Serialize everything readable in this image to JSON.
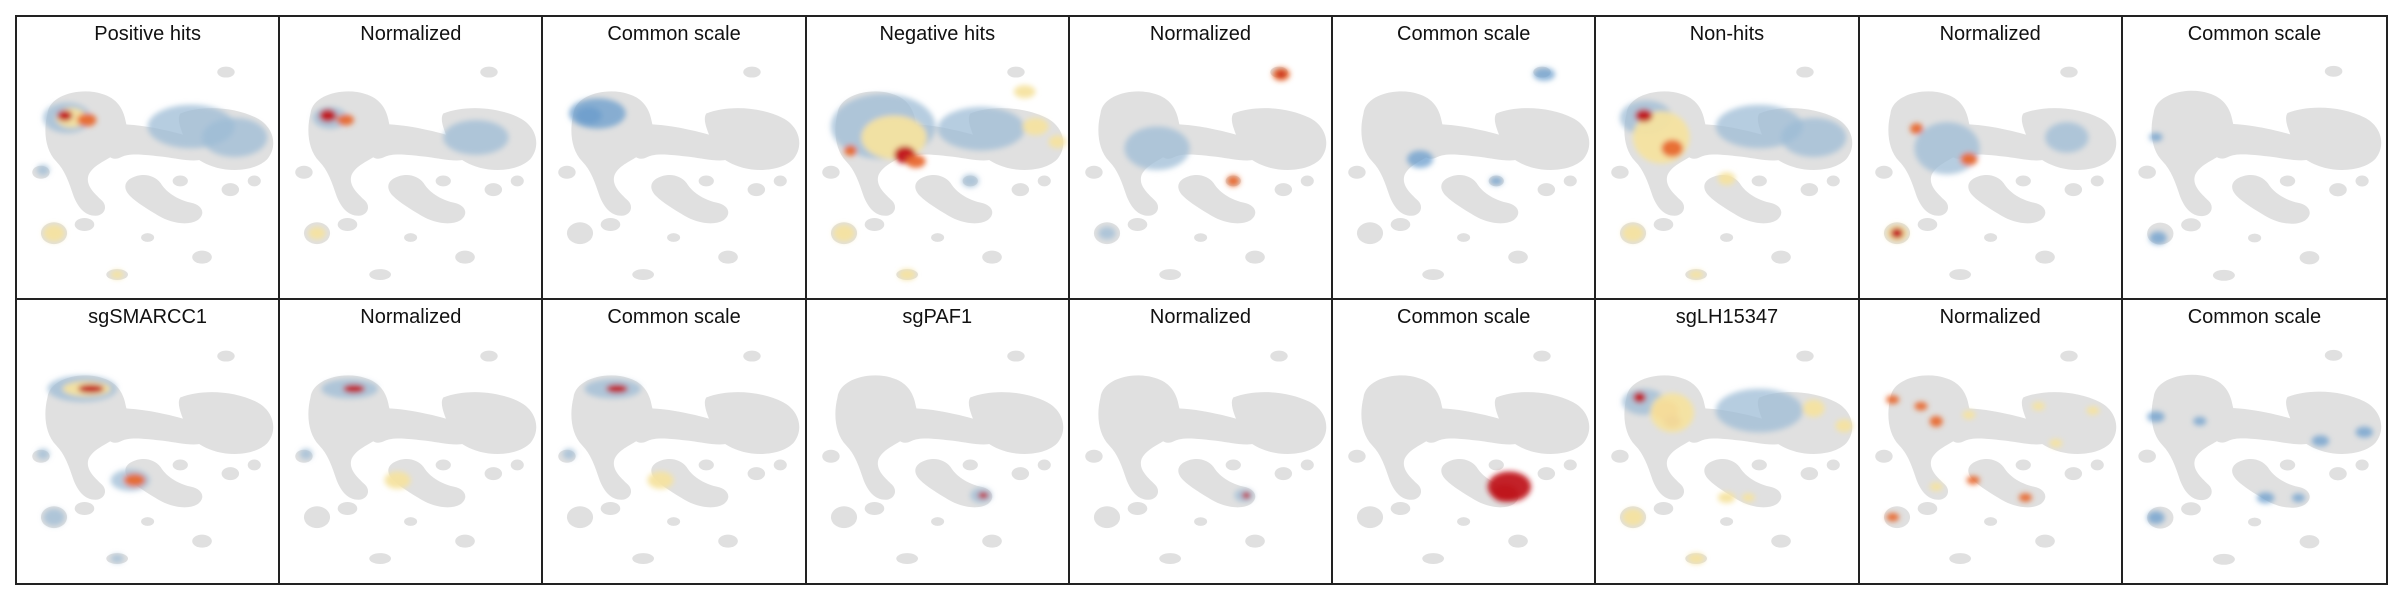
{
  "figure": {
    "rows": [
      [
        {
          "title": "Positive hits",
          "scale": "raw",
          "profile": "pos_raw"
        },
        {
          "title": "Normalized",
          "scale": "normalized",
          "profile": "pos_norm"
        },
        {
          "title": "Common scale",
          "scale": "common",
          "profile": "pos_common"
        },
        {
          "title": "Negative hits",
          "scale": "raw",
          "profile": "neg_raw"
        },
        {
          "title": "Normalized",
          "scale": "normalized",
          "profile": "neg_norm"
        },
        {
          "title": "Common scale",
          "scale": "common",
          "profile": "neg_common"
        },
        {
          "title": "Non-hits",
          "scale": "raw",
          "profile": "non_raw"
        },
        {
          "title": "Normalized",
          "scale": "normalized",
          "profile": "non_norm"
        },
        {
          "title": "Common scale",
          "scale": "common",
          "profile": "non_common"
        }
      ],
      [
        {
          "title": "sgSMARCC1",
          "scale": "raw",
          "profile": "smarcc1_raw"
        },
        {
          "title": "Normalized",
          "scale": "normalized",
          "profile": "smarcc1_norm"
        },
        {
          "title": "Common scale",
          "scale": "common",
          "profile": "smarcc1_common"
        },
        {
          "title": "sgPAF1",
          "scale": "raw",
          "profile": "paf1_raw"
        },
        {
          "title": "Normalized",
          "scale": "normalized",
          "profile": "paf1_norm"
        },
        {
          "title": "Common scale",
          "scale": "common",
          "profile": "paf1_common"
        },
        {
          "title": "sgLH15347",
          "scale": "raw",
          "profile": "lh_raw"
        },
        {
          "title": "Normalized",
          "scale": "normalized",
          "profile": "lh_norm"
        },
        {
          "title": "Common scale",
          "scale": "common",
          "profile": "lh_common"
        }
      ]
    ]
  },
  "colors": {
    "background_cells": "#e0e0e0",
    "low_density": "#9ebcd6",
    "mid_density": "#f5e3a0",
    "high_density": "#e8692e",
    "peak_density": "#c0141a",
    "depleted": "#6a9ccc"
  },
  "chart_data": {
    "type": "heatmap",
    "description_of_encoding": "UMAP embedding panels; density overlays on grey cell cloud",
    "layout": {
      "rows": 2,
      "cols": 9
    },
    "colormap": [
      "#6a9ccc",
      "#9ebcd6",
      "#f5e3a0",
      "#e8692e",
      "#c0141a"
    ],
    "grid": false,
    "axes_visible": false
  }
}
